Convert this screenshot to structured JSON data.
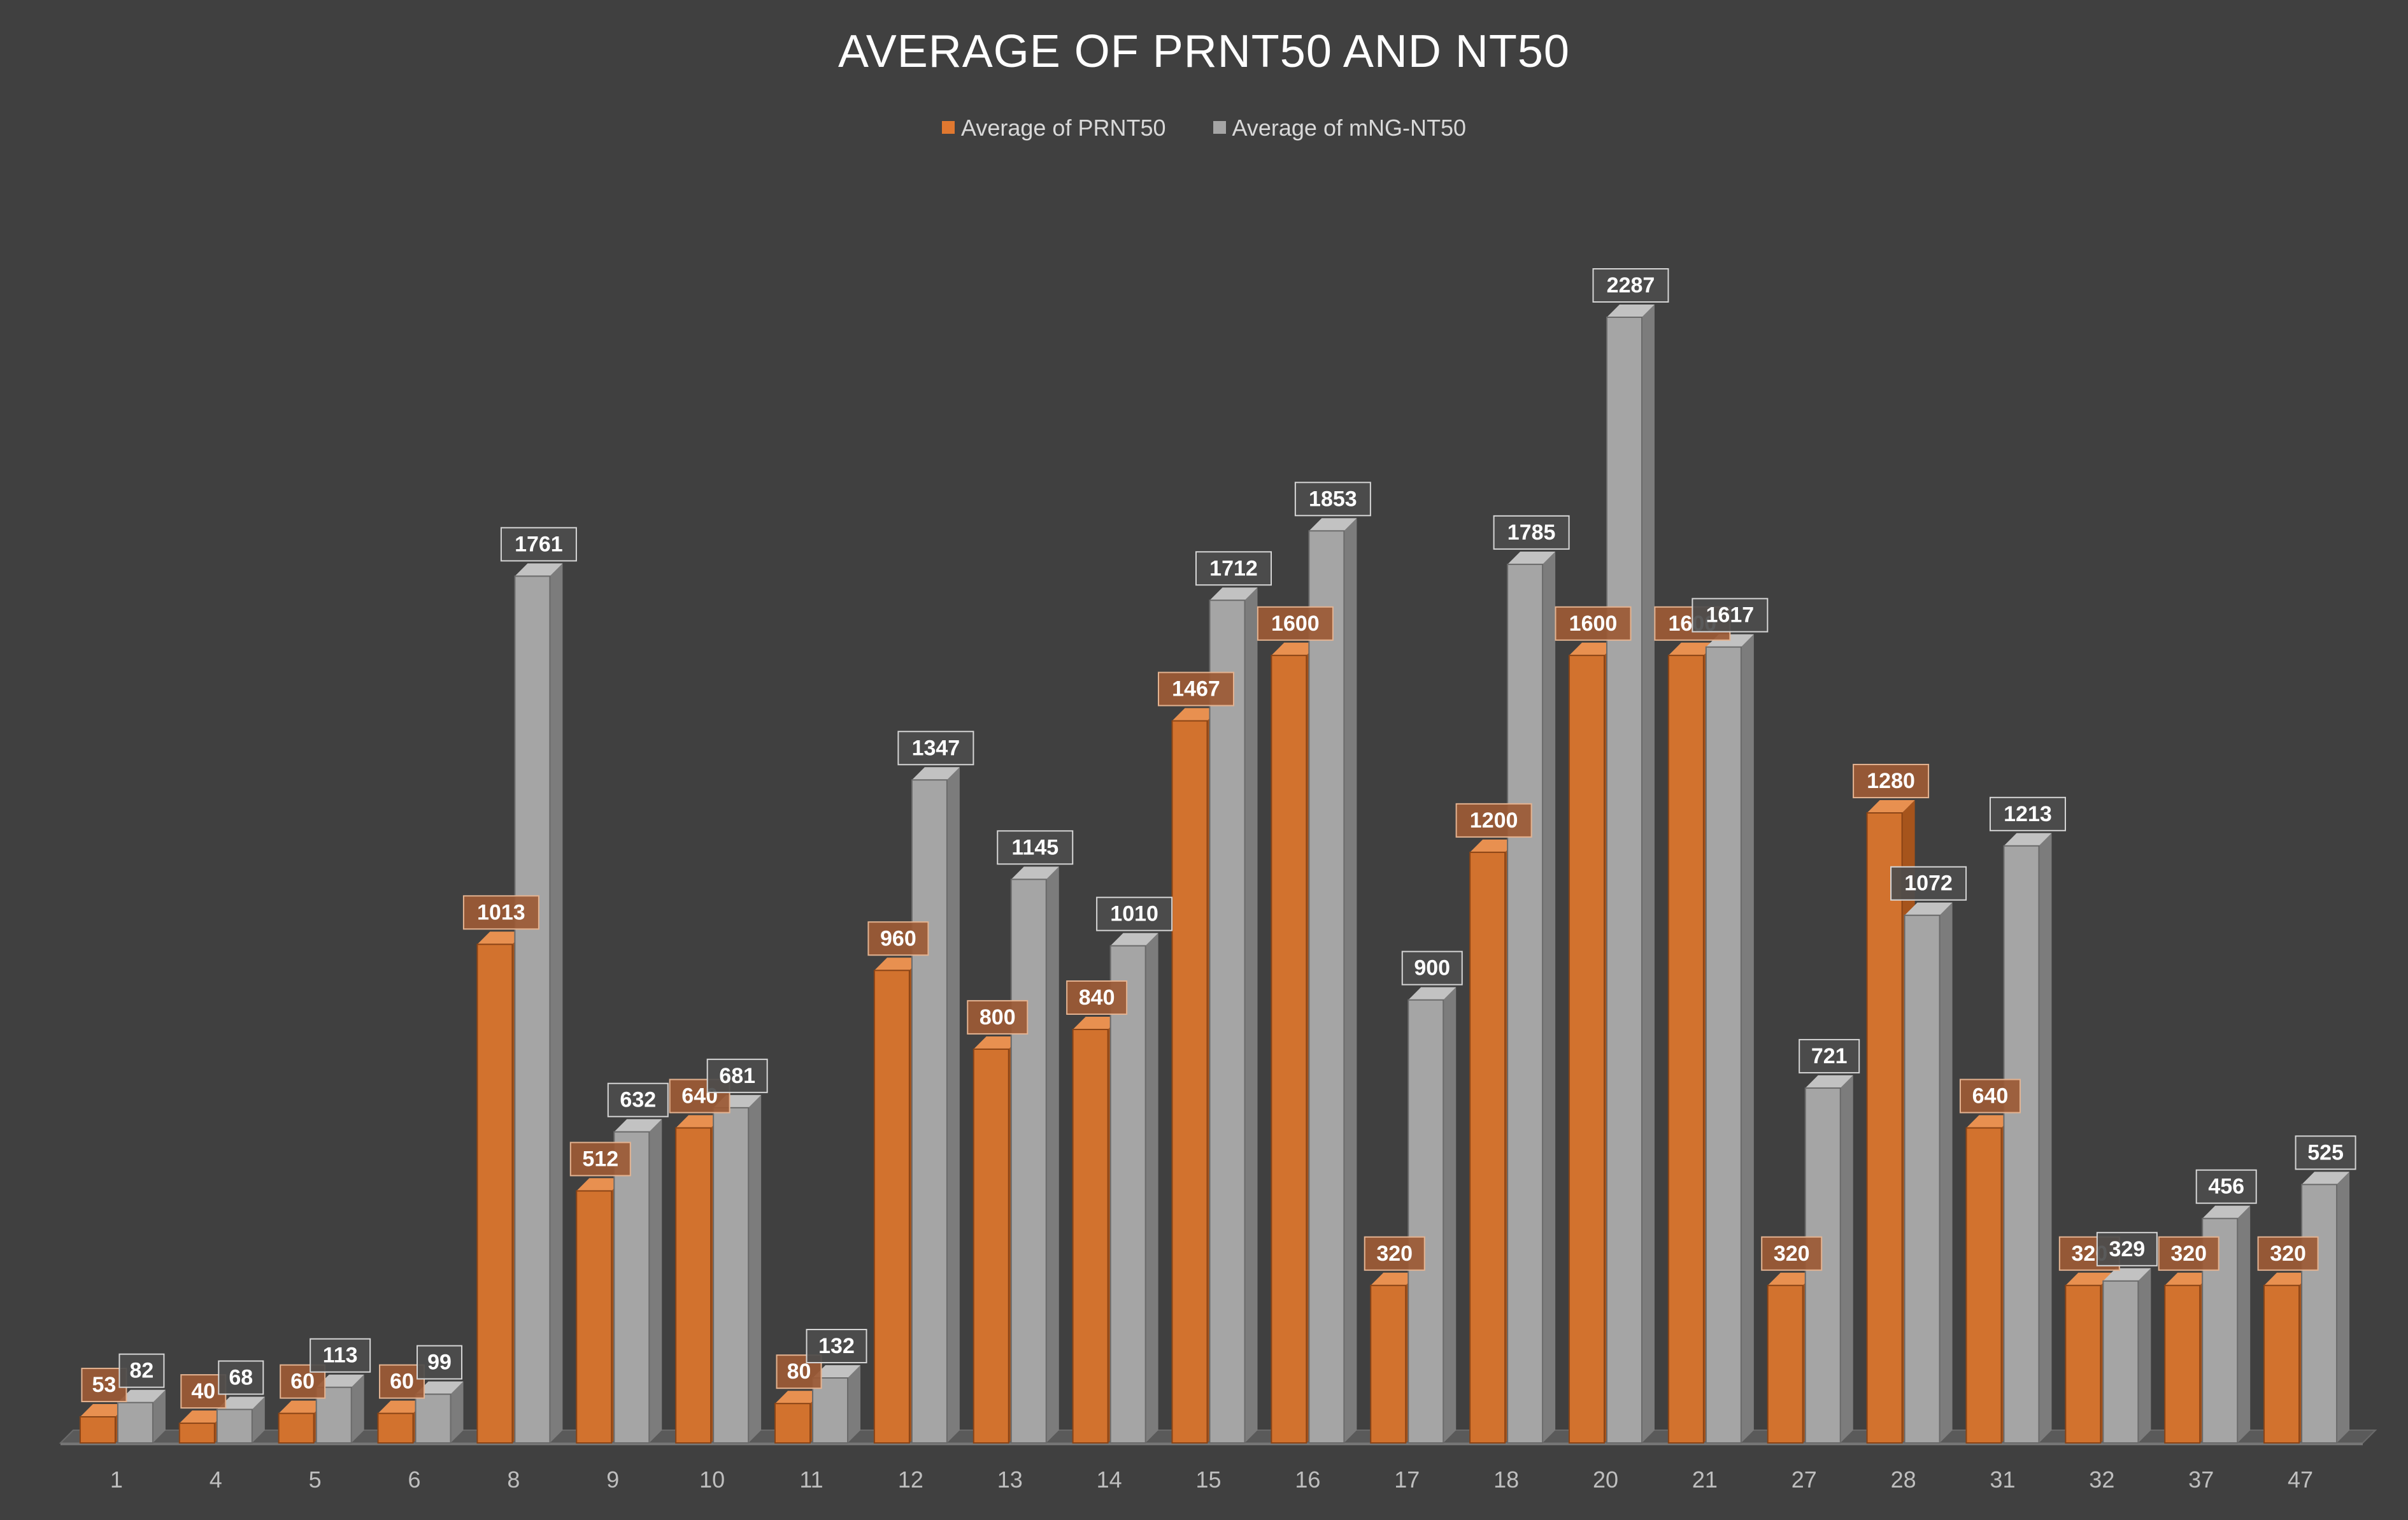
{
  "chart_data": {
    "type": "bar",
    "title": "AVERAGE OF PRNT50 AND  NT50",
    "categories": [
      "1",
      "4",
      "5",
      "6",
      "8",
      "9",
      "10",
      "11",
      "12",
      "13",
      "14",
      "15",
      "16",
      "17",
      "18",
      "20",
      "21",
      "27",
      "28",
      "31",
      "32",
      "37",
      "47"
    ],
    "series": [
      {
        "name": "Average of PRNT50",
        "color": "#e07830",
        "values": [
          53,
          40,
          60,
          60,
          1013,
          512,
          640,
          80,
          960,
          800,
          840,
          1467,
          1600,
          320,
          1200,
          1600,
          1600,
          320,
          1280,
          640,
          320,
          320,
          320
        ]
      },
      {
        "name": "Average of mNG-NT50",
        "color": "#a5a5a5",
        "values": [
          82,
          68,
          113,
          99,
          1761,
          632,
          681,
          132,
          1347,
          1145,
          1010,
          1712,
          1853,
          900,
          1785,
          2287,
          1617,
          721,
          1072,
          1213,
          329,
          456,
          525
        ]
      }
    ],
    "ylim": [
      0,
      2287
    ],
    "legend_position": "top",
    "grid": false,
    "data_labels": true,
    "style": "3d-clustered-column"
  }
}
